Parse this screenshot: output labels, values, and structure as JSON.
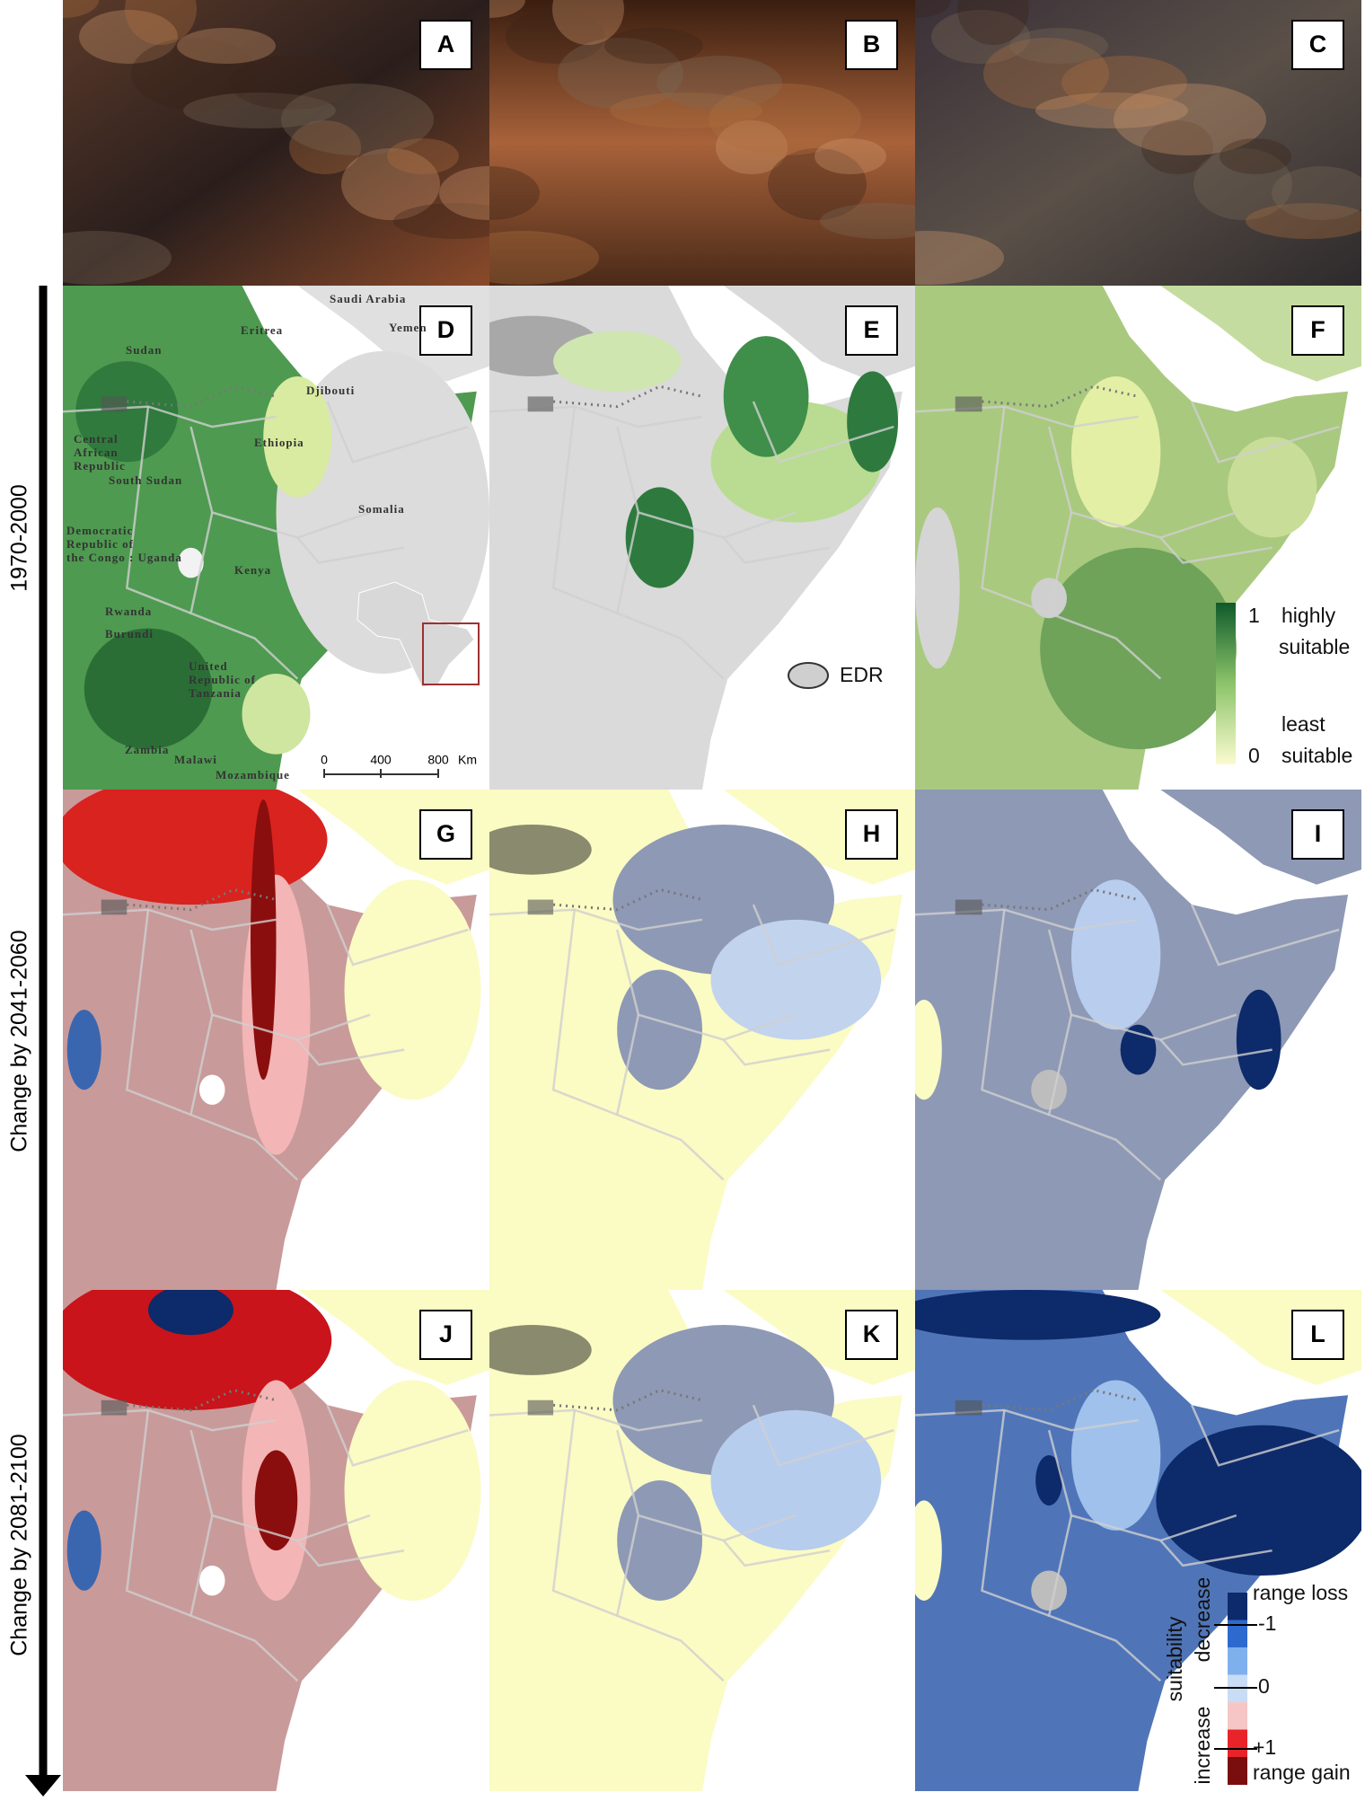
{
  "row_labels": [
    "1970-2000",
    "Change by 2041-2060",
    "Change by 2081-2100"
  ],
  "panels": [
    {
      "letter": "A"
    },
    {
      "letter": "B"
    },
    {
      "letter": "C"
    },
    {
      "letter": "D"
    },
    {
      "letter": "E"
    },
    {
      "letter": "F"
    },
    {
      "letter": "G"
    },
    {
      "letter": "H"
    },
    {
      "letter": "I"
    },
    {
      "letter": "J"
    },
    {
      "letter": "K"
    },
    {
      "letter": "L"
    }
  ],
  "map_labels": [
    {
      "lines": [
        "Saudi Arabia"
      ]
    },
    {
      "lines": [
        "Yemen"
      ]
    },
    {
      "lines": [
        "Sudan"
      ]
    },
    {
      "lines": [
        "Eritrea"
      ]
    },
    {
      "lines": [
        "Djibouti"
      ]
    },
    {
      "lines": [
        "Ethiopia"
      ]
    },
    {
      "lines": [
        "Central",
        "African",
        "Republic"
      ]
    },
    {
      "lines": [
        "South Sudan"
      ]
    },
    {
      "lines": [
        "Somalia"
      ]
    },
    {
      "lines": [
        "Democratic",
        "Republic of",
        "the Congo : Uganda"
      ]
    },
    {
      "lines": [
        "Kenya"
      ]
    },
    {
      "lines": [
        "Rwanda"
      ]
    },
    {
      "lines": [
        "Burundi"
      ]
    },
    {
      "lines": [
        "United",
        "Republic of",
        "Tanzania"
      ]
    },
    {
      "lines": [
        "Zambia"
      ]
    },
    {
      "lines": [
        "Malawi"
      ]
    },
    {
      "lines": [
        "Mozambique"
      ]
    }
  ],
  "scale_bar": {
    "ticks": [
      "0",
      "400",
      "800"
    ],
    "unit": "Km"
  },
  "edr_legend": "EDR",
  "suitability_legend": {
    "high_value": "1",
    "high_label": [
      "highly",
      "suitable"
    ],
    "low_label": [
      "least",
      "suitable"
    ],
    "low_value": "0"
  },
  "change_legend": {
    "top": "range loss",
    "minus": "-1",
    "zero": "0",
    "plus": "+1",
    "bottom": "range gain",
    "title": "suitability",
    "decrease": "decrease",
    "increase": "increase"
  }
}
